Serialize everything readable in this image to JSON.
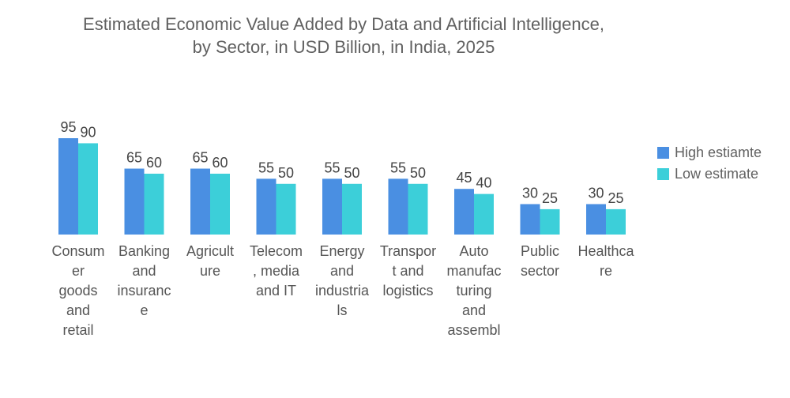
{
  "chart_data": {
    "type": "bar",
    "title_lines": [
      "Estimated Economic Value Added by Data and Artificial Intelligence,",
      "by Sector, in USD Billion, in India, 2025"
    ],
    "categories": [
      "Consumer goods and retail",
      "Banking and insurance",
      "Agriculture",
      "Telecom, media and IT",
      "Energy and industrials",
      "Transport and logistics",
      "Auto manufacturing and assembl",
      "Public sector",
      "Healthcare"
    ],
    "category_label_lines": [
      [
        "Consum",
        "er",
        "goods",
        "and",
        "retail"
      ],
      [
        "Banking",
        "and",
        "insuranc",
        "e"
      ],
      [
        "Agricult",
        "ure"
      ],
      [
        "Telecom",
        ", media",
        "and IT"
      ],
      [
        "Energy",
        "and",
        "industria",
        "ls"
      ],
      [
        "Transpor",
        "t and",
        "logistics"
      ],
      [
        "Auto",
        "manufac",
        "turing",
        "and",
        "assembl"
      ],
      [
        "Public",
        "sector"
      ],
      [
        "Healthca",
        "re"
      ]
    ],
    "series": [
      {
        "name": "High estiamte",
        "color": "#4a8fe2",
        "values": [
          95,
          65,
          65,
          55,
          55,
          55,
          45,
          30,
          30
        ]
      },
      {
        "name": "Low estimate",
        "color": "#3ccfd9",
        "values": [
          90,
          60,
          60,
          50,
          50,
          50,
          40,
          25,
          25
        ]
      }
    ],
    "ylim": [
      0,
      95
    ],
    "grid": false,
    "legend_position": "right"
  }
}
